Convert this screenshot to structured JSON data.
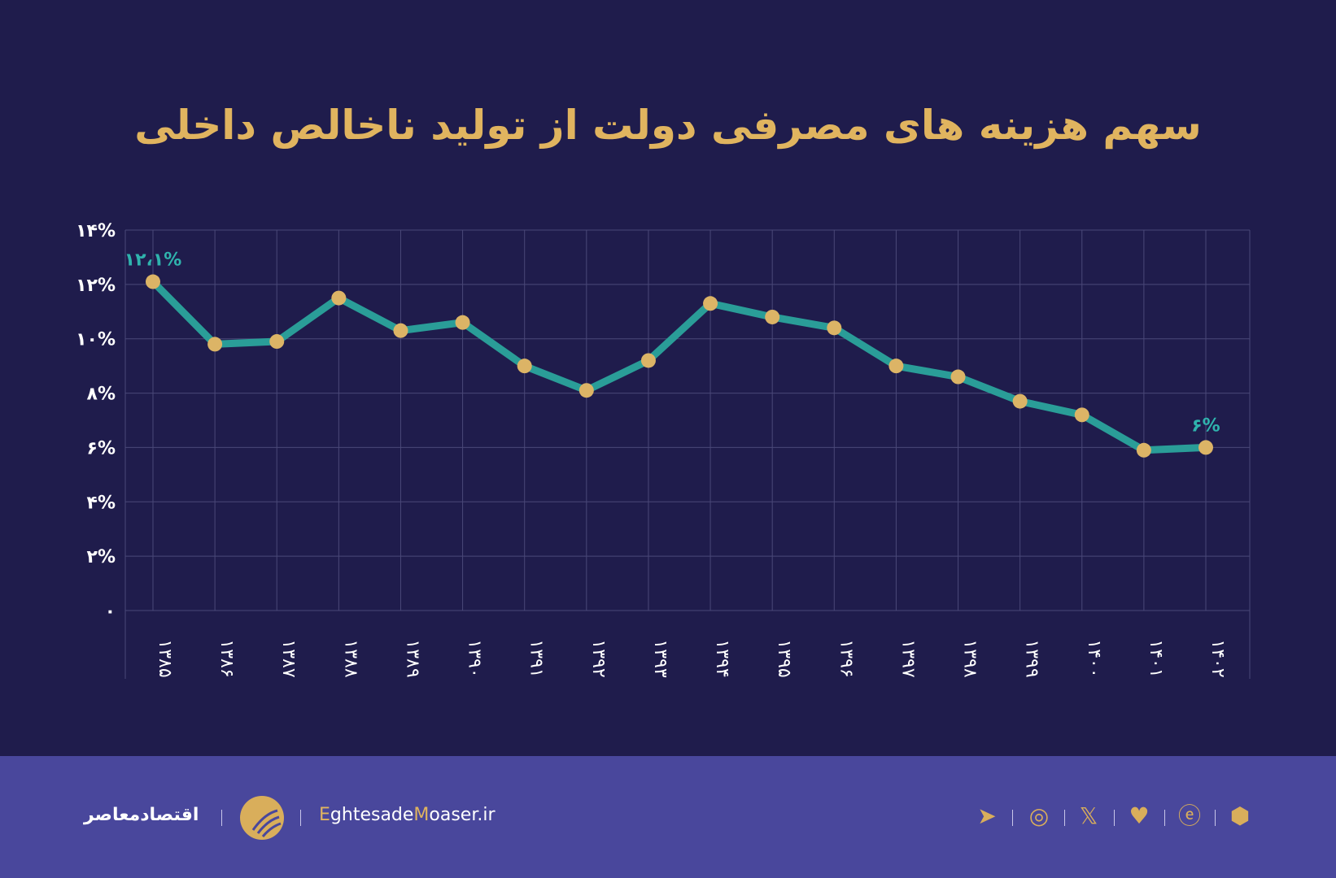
{
  "title": "سهم هزینه های مصرفی دولت از تولید ناخالص داخلی",
  "chart_data": {
    "type": "line",
    "title": "سهم هزینه های مصرفی دولت از تولید ناخالص داخلی",
    "categories": [
      "۱۳۸۵",
      "۱۳۸۶",
      "۱۳۸۷",
      "۱۳۸۸",
      "۱۳۸۹",
      "۱۳۹۰",
      "۱۳۹۱",
      "۱۳۹۲",
      "۱۳۹۳",
      "۱۳۹۴",
      "۱۳۹۵",
      "۱۳۹۶",
      "۱۳۹۷",
      "۱۳۹۸",
      "۱۳۹۹",
      "۱۴۰۰",
      "۱۴۰۱",
      "۱۴۰۲"
    ],
    "values": [
      12.1,
      9.8,
      9.9,
      11.5,
      10.3,
      10.6,
      9.0,
      8.1,
      9.2,
      11.3,
      10.8,
      10.4,
      9.0,
      8.6,
      7.7,
      7.2,
      5.9,
      6.0
    ],
    "yticks": [
      {
        "v": 0,
        "label": "۰"
      },
      {
        "v": 2,
        "label": "۲%"
      },
      {
        "v": 4,
        "label": "۴%"
      },
      {
        "v": 6,
        "label": "۶%"
      },
      {
        "v": 8,
        "label": "۸%"
      },
      {
        "v": 10,
        "label": "۱۰%"
      },
      {
        "v": 12,
        "label": "۱۲%"
      },
      {
        "v": 14,
        "label": "۱۴%"
      }
    ],
    "ylim": [
      0,
      14
    ],
    "grid": true,
    "annotations": [
      {
        "index": 0,
        "label": "۱۲،۱%"
      },
      {
        "index": 17,
        "label": "۶%"
      }
    ],
    "colors": {
      "line": "#2a9d98",
      "marker": "#dcb466",
      "annotation": "#2fb3ad",
      "grid": "#4a4878"
    }
  },
  "footer": {
    "brand_fa": "اقتصادمعاصر",
    "site_e": "E",
    "site_ghtesade": "ghtesade",
    "site_m": "M",
    "site_rest": "oaser.ir",
    "icons": [
      "telegram-icon",
      "instagram-icon",
      "x-icon",
      "bale-icon",
      "eitaa-icon",
      "rubika-icon"
    ]
  }
}
